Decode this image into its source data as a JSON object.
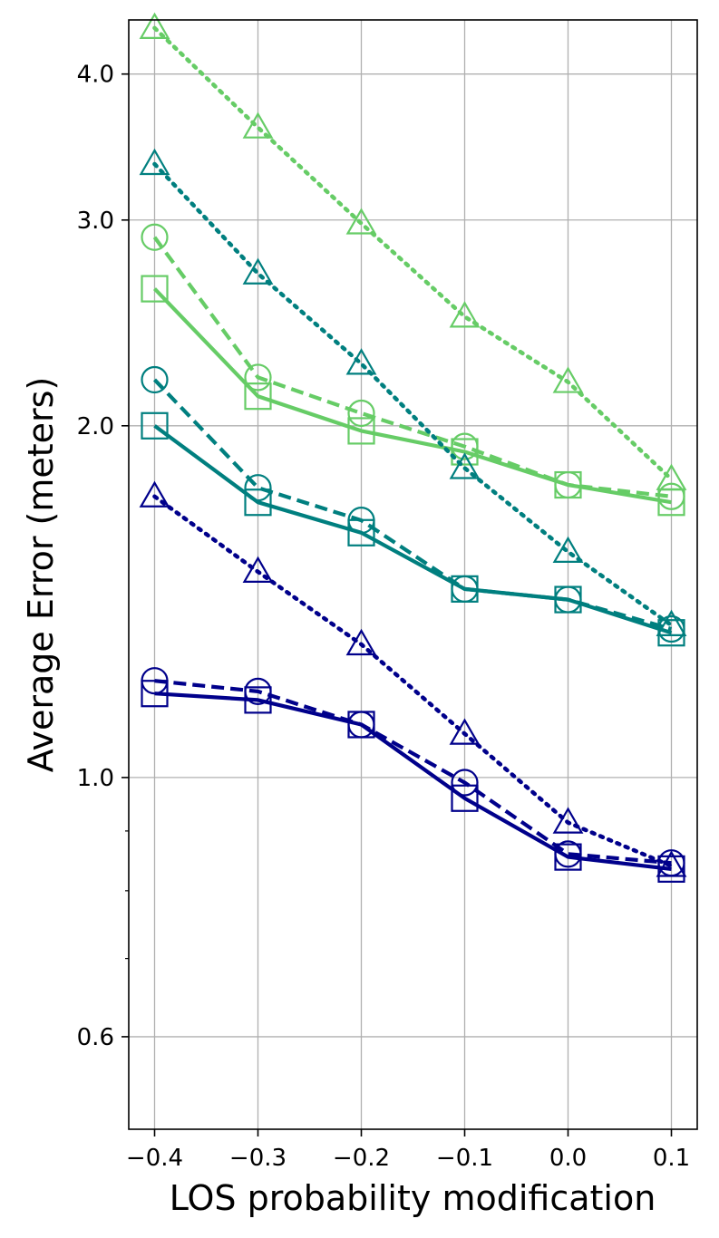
{
  "chart_data": {
    "type": "line",
    "title": "",
    "xlabel": "LOS probability modification",
    "ylabel": "Average Error (meters)",
    "yscale": "log",
    "xlim": [
      -0.425,
      0.125
    ],
    "ylim": [
      0.5,
      4.45
    ],
    "x_ticks": [
      -0.4,
      -0.3,
      -0.2,
      -0.1,
      0.0,
      0.1
    ],
    "x_tick_labels": [
      "−0.4",
      "−0.3",
      "−0.2",
      "−0.1",
      "0.0",
      "0.1"
    ],
    "y_ticks": [
      0.6,
      1.0,
      2.0,
      3.0,
      4.0
    ],
    "y_tick_labels": [
      "0.6",
      "1.0",
      "2.0",
      "3.0",
      "4.0"
    ],
    "y_minor_ticks": [
      0.7,
      0.8,
      0.9
    ],
    "grid": true,
    "x": [
      -0.4,
      -0.3,
      -0.2,
      -0.1,
      0.0,
      0.1
    ],
    "series": [
      {
        "color": "#66cc66",
        "line": "dotted",
        "marker": "triangle",
        "values": [
          4.38,
          3.6,
          2.98,
          2.48,
          2.18,
          1.8
        ]
      },
      {
        "color": "#66cc66",
        "line": "dashed",
        "marker": "circle",
        "values": [
          2.9,
          2.2,
          2.05,
          1.92,
          1.78,
          1.74
        ]
      },
      {
        "color": "#66cc66",
        "line": "solid",
        "marker": "square",
        "values": [
          2.62,
          2.12,
          1.98,
          1.9,
          1.78,
          1.72
        ]
      },
      {
        "color": "#007f7f",
        "line": "dotted",
        "marker": "triangle",
        "values": [
          3.35,
          2.7,
          2.26,
          1.84,
          1.56,
          1.35
        ]
      },
      {
        "color": "#007f7f",
        "line": "dashed",
        "marker": "circle",
        "values": [
          2.19,
          1.77,
          1.66,
          1.45,
          1.42,
          1.34
        ]
      },
      {
        "color": "#007f7f",
        "line": "solid",
        "marker": "square",
        "values": [
          2.0,
          1.72,
          1.62,
          1.45,
          1.42,
          1.33
        ]
      },
      {
        "color": "#00008b",
        "line": "dotted",
        "marker": "triangle",
        "values": [
          1.74,
          1.5,
          1.3,
          1.09,
          0.915,
          0.84
        ]
      },
      {
        "color": "#00008b",
        "line": "dashed",
        "marker": "circle",
        "values": [
          1.21,
          1.185,
          1.11,
          0.99,
          0.86,
          0.845
        ]
      },
      {
        "color": "#00008b",
        "line": "solid",
        "marker": "square",
        "values": [
          1.18,
          1.165,
          1.11,
          0.96,
          0.855,
          0.835
        ]
      }
    ]
  }
}
